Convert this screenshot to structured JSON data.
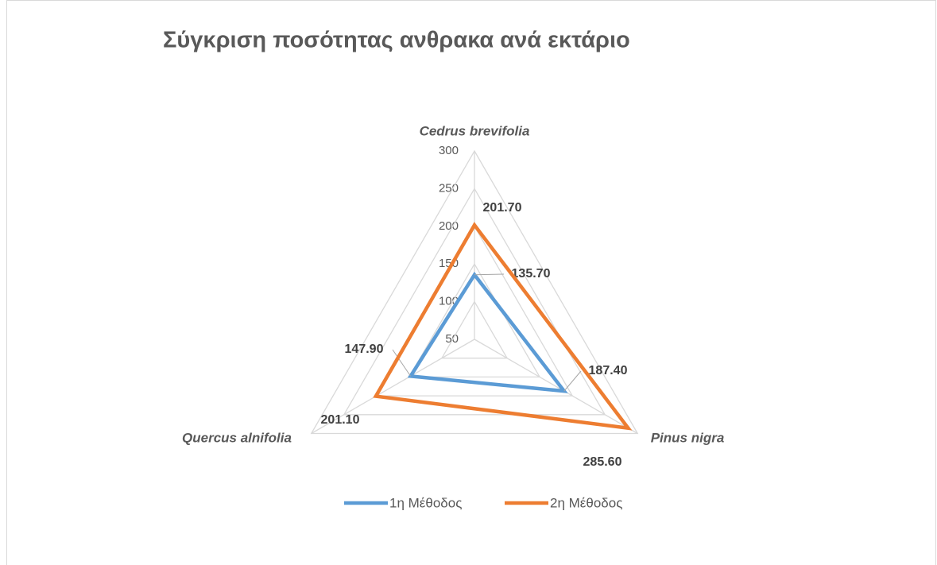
{
  "chart_data": {
    "type": "radar",
    "title": "Σύγκριση ποσότητας ανθρακα ανά εκτάριο",
    "categories": [
      "Cedrus brevifolia",
      "Pinus nigra",
      "Quercus alnifolia"
    ],
    "series": [
      {
        "name": "1η Μέθοδος",
        "color": "#5b9bd5",
        "values": [
          135.7,
          187.4,
          147.9
        ],
        "value_labels": [
          "135.70",
          "187.40",
          "147.90"
        ]
      },
      {
        "name": "2η Μέθοδος",
        "color": "#ed7d31",
        "values": [
          201.7,
          285.6,
          201.1
        ],
        "value_labels": [
          "201.70",
          "285.60",
          "201.10"
        ]
      }
    ],
    "ylim": [
      50,
      300
    ],
    "yticks": [
      50,
      100,
      150,
      200,
      250,
      300
    ],
    "grid": true,
    "legend": "bottom"
  }
}
